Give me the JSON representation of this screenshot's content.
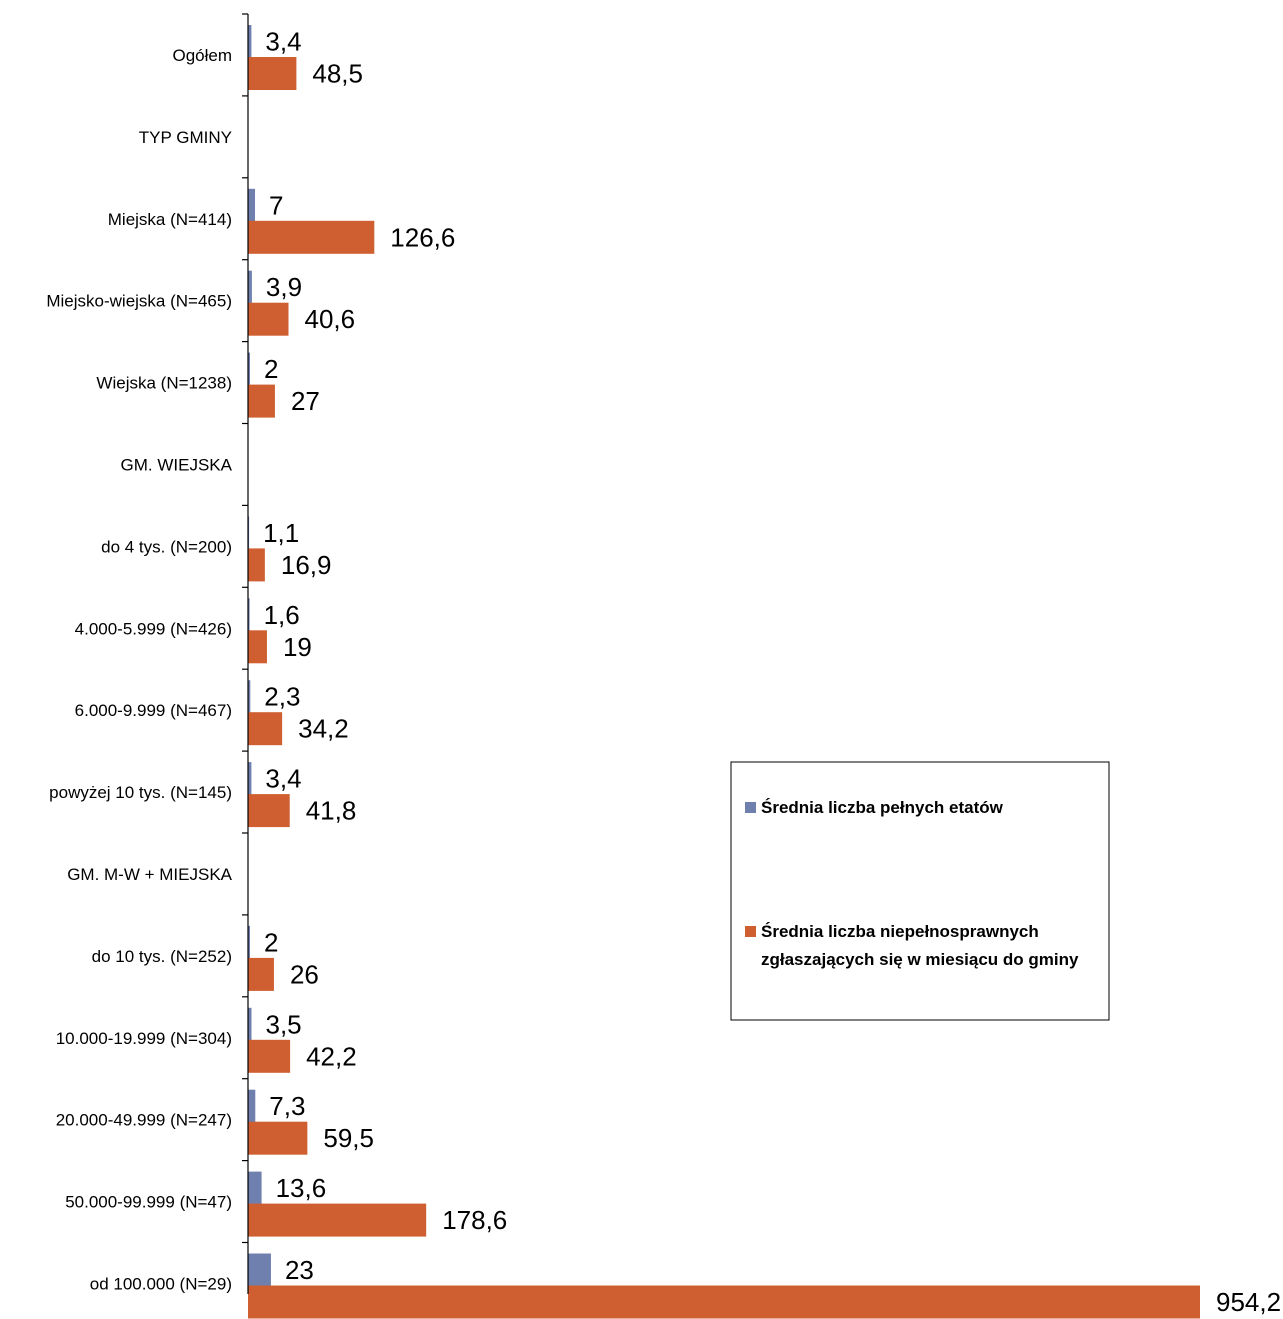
{
  "chart_data": {
    "type": "bar",
    "orientation": "horizontal",
    "title": "",
    "xlabel": "",
    "ylabel": "",
    "categories": [
      "Ogółem",
      "TYP GMINY",
      "Miejska (N=414)",
      "Miejsko-wiejska (N=465)",
      "Wiejska (N=1238)",
      "GM. WIEJSKA",
      "do 4 tys. (N=200)",
      "4.000-5.999 (N=426)",
      "6.000-9.999 (N=467)",
      "powyżej 10 tys. (N=145)",
      "GM. M-W + MIEJSKA",
      "do 10 tys. (N=252)",
      "10.000-19.999 (N=304)",
      "20.000-49.999 (N=247)",
      "50.000-99.999 (N=47)",
      "od 100.000 (N=29)"
    ],
    "series": [
      {
        "name": "Średnia liczba pełnych etatów",
        "color": "#6f7fae",
        "values": [
          3.4,
          null,
          7,
          3.9,
          2,
          null,
          1.1,
          1.6,
          2.3,
          3.4,
          null,
          2,
          3.5,
          7.3,
          13.6,
          23
        ],
        "labels": [
          "3,4",
          "",
          "7",
          "3,9",
          "2",
          "",
          "1,1",
          "1,6",
          "2,3",
          "3,4",
          "",
          "2",
          "3,5",
          "7,3",
          "13,6",
          "23"
        ]
      },
      {
        "name": "Średnia liczba niepełnosprawnych zgłaszających się w miesiącu do gminy",
        "color": "#cf5f30",
        "values": [
          48.5,
          null,
          126.6,
          40.6,
          27,
          null,
          16.9,
          19,
          34.2,
          41.8,
          null,
          26,
          42.2,
          59.5,
          178.6,
          954.2
        ],
        "labels": [
          "48,5",
          "",
          "126,6",
          "40,6",
          "27",
          "",
          "16,9",
          "19",
          "34,2",
          "41,8",
          "",
          "26",
          "42,2",
          "59,5",
          "178,6",
          "954,2"
        ]
      }
    ],
    "legend": {
      "placement": "right",
      "items": [
        [
          "Średnia liczba pełnych etatów"
        ],
        [
          "Średnia liczba niepełnosprawnych",
          "zgłaszających się w miesiącu do gminy"
        ]
      ]
    },
    "grid": false
  }
}
